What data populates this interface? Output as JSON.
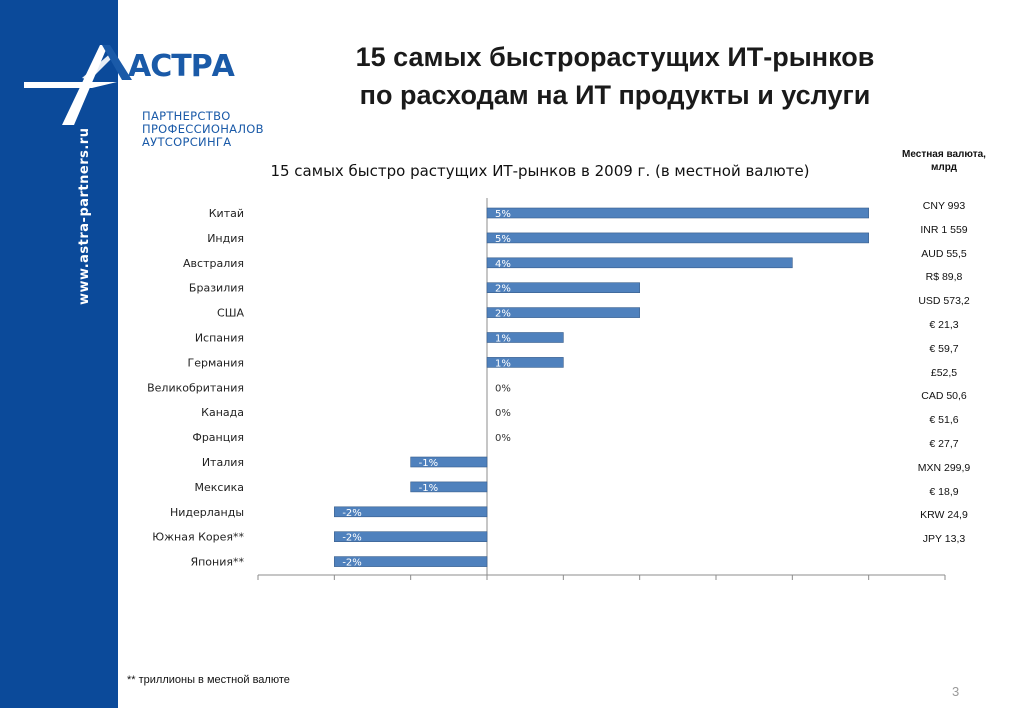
{
  "sidebar": {
    "url": "www.astra-partners.ru"
  },
  "logo": {
    "wordmark": "АСТРА",
    "lines": [
      "ПАРТНЕРСТВО",
      "ПРОФЕССИОНАЛОВ",
      "АУТСОРСИНГА"
    ]
  },
  "slide": {
    "title_line1": "15 самых быстрорастущих ИТ-рынков",
    "title_line2": "по расходам на ИТ продукты и услуги",
    "footnote": "** триллионы в местной валюте",
    "page_number": "3"
  },
  "currency_table": {
    "header": "Местная валюта, млрд",
    "values": [
      "CNY 993",
      "INR 1 559",
      "AUD 55,5",
      "R$ 89,8",
      "USD 573,2",
      "€ 21,3",
      "€ 59,7",
      "£52,5",
      "CAD 50,6",
      "€ 51,6",
      "€ 27,7",
      "MXN 299,9",
      "€ 18,9",
      "KRW 24,9",
      "JPY 13,3"
    ]
  },
  "colors": {
    "sidebar": "#0b4a9a",
    "bar": "#4f81bd",
    "bar_edge": "#385d8a",
    "logo": "#1a5aa8"
  },
  "chart_data": {
    "type": "bar",
    "orientation": "horizontal",
    "title": "15 самых быстро растущих ИТ-рынков в 2009 г. (в местной валюте)",
    "categories": [
      "Китай",
      "Индия",
      "Австралия",
      "Бразилия",
      "США",
      "Испания",
      "Германия",
      "Великобритания",
      "Канада",
      "Франция",
      "Италия",
      "Мексика",
      "Нидерланды",
      "Южная Корея**",
      "Япония**"
    ],
    "values": [
      5,
      5,
      4,
      2,
      2,
      1,
      1,
      0,
      0,
      0,
      -1,
      -1,
      -2,
      -2,
      -2
    ],
    "data_labels": [
      "5%",
      "5%",
      "4%",
      "2%",
      "2%",
      "1%",
      "1%",
      "0%",
      "0%",
      "0%",
      "-1%",
      "-1%",
      "-2%",
      "-2%",
      "-2%"
    ],
    "xlim": [
      -3,
      6
    ],
    "grid": false
  }
}
